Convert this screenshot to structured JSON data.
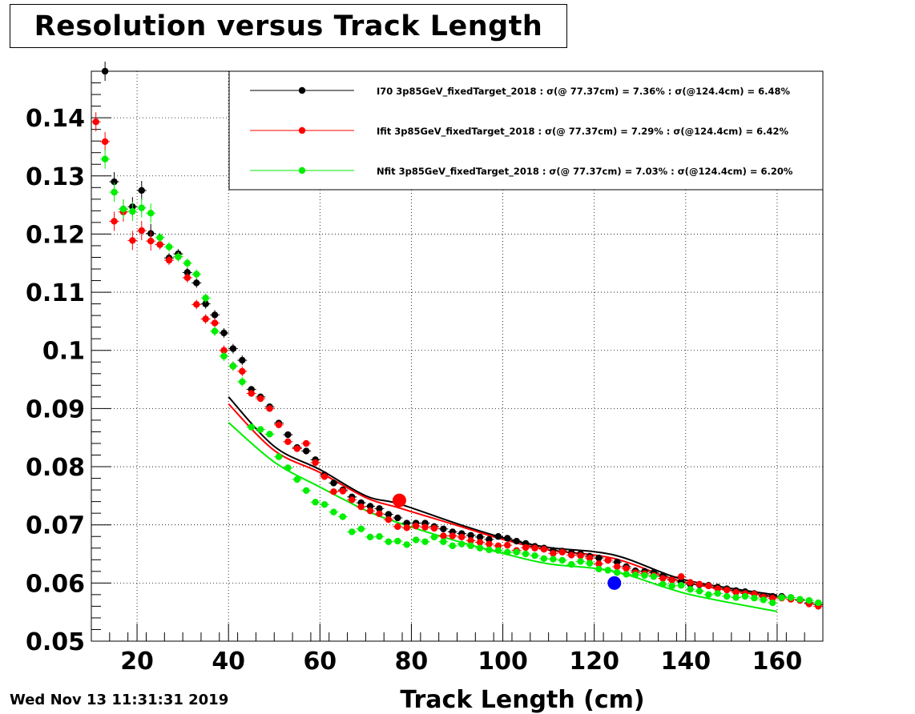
{
  "title": "Resolution versus Track Length",
  "datestamp": "Wed Nov 13 11:31:31 2019",
  "chart_data": {
    "type": "scatter",
    "title": "Resolution versus Track Length",
    "xlabel": "Track Length (cm)",
    "ylabel": "",
    "xlim": [
      10,
      170
    ],
    "ylim": [
      0.05,
      0.148
    ],
    "grid": true,
    "legend_position": "top-right",
    "x_ticks": [
      20,
      40,
      60,
      80,
      100,
      120,
      140,
      160
    ],
    "x_tick_labels": [
      "20",
      "40",
      "60",
      "80",
      "100",
      "120",
      "140",
      "160"
    ],
    "y_ticks": [
      0.05,
      0.06,
      0.07,
      0.08,
      0.09,
      0.1,
      0.11,
      0.12,
      0.13,
      0.14
    ],
    "y_tick_labels": [
      "0.05",
      "0.06",
      "0.07",
      "0.08",
      "0.09",
      "0.1",
      "0.11",
      "0.12",
      "0.13",
      "0.14"
    ],
    "series": [
      {
        "name": "I70  3p85GeV_fixedTarget_2018 : σ(@ 77.37cm) =  7.36% : σ(@124.4cm) =  6.48%",
        "color": "#000000",
        "x": [
          13,
          15,
          17,
          19,
          21,
          23,
          25,
          27,
          29,
          31,
          33,
          35,
          37,
          39,
          41,
          43,
          45,
          47,
          49,
          51,
          53,
          55,
          57,
          59,
          61,
          63,
          65,
          67,
          69,
          71,
          73,
          75,
          77,
          79,
          81,
          83,
          85,
          87,
          89,
          91,
          93,
          95,
          97,
          99,
          101,
          103,
          105,
          107,
          109,
          111,
          113,
          115,
          117,
          119,
          121,
          123,
          125,
          127,
          129,
          131,
          133,
          135,
          137,
          139,
          141,
          143,
          145,
          147,
          149,
          151,
          153,
          155,
          157,
          159,
          161,
          163,
          165,
          167,
          169
        ],
        "y": [
          0.148,
          0.129,
          0.1243,
          0.1247,
          0.1275,
          0.1201,
          0.1182,
          0.1159,
          0.1166,
          0.1134,
          0.1116,
          0.108,
          0.1061,
          0.103,
          0.1003,
          0.0983,
          0.0933,
          0.092,
          0.0903,
          0.0875,
          0.0855,
          0.0833,
          0.0827,
          0.0812,
          0.0786,
          0.0772,
          0.076,
          0.0748,
          0.0738,
          0.0732,
          0.0728,
          0.0718,
          0.0712,
          0.0703,
          0.0703,
          0.0703,
          0.0697,
          0.0693,
          0.0688,
          0.0685,
          0.0682,
          0.0679,
          0.0675,
          0.068,
          0.0677,
          0.0672,
          0.0668,
          0.0663,
          0.066,
          0.0656,
          0.0655,
          0.0652,
          0.065,
          0.0646,
          0.0643,
          0.0639,
          0.0636,
          0.0628,
          0.0621,
          0.062,
          0.0618,
          0.0612,
          0.0606,
          0.0602,
          0.0598,
          0.0597,
          0.0596,
          0.0593,
          0.059,
          0.0587,
          0.0585,
          0.0582,
          0.0578,
          0.0577,
          0.0577,
          0.0575,
          0.0571,
          0.0566,
          0.0563
        ]
      },
      {
        "name": "Ifit 3p85GeV_fixedTarget_2018 : σ(@ 77.37cm) =  7.29% : σ(@124.4cm) =  6.42%",
        "color": "#ff0000",
        "x": [
          11,
          13,
          15,
          17,
          19,
          21,
          23,
          25,
          27,
          29,
          31,
          33,
          35,
          37,
          39,
          41,
          43,
          45,
          47,
          49,
          51,
          53,
          55,
          57,
          59,
          61,
          63,
          65,
          67,
          69,
          71,
          73,
          75,
          77,
          79,
          81,
          83,
          85,
          87,
          89,
          91,
          93,
          95,
          97,
          99,
          101,
          103,
          105,
          107,
          109,
          111,
          113,
          115,
          117,
          119,
          121,
          123,
          125,
          127,
          129,
          131,
          133,
          135,
          137,
          139,
          141,
          143,
          145,
          147,
          149,
          151,
          153,
          155,
          157,
          159,
          161,
          163,
          165,
          167,
          169
        ],
        "y": [
          0.1393,
          0.1359,
          0.1222,
          0.1238,
          0.1189,
          0.1206,
          0.1188,
          0.1182,
          0.1155,
          0.1161,
          0.1125,
          0.1079,
          0.1054,
          0.1047,
          0.1,
          0.0973,
          0.0964,
          0.0926,
          0.0917,
          0.09,
          0.0872,
          0.0843,
          0.0831,
          0.084,
          0.0807,
          0.0783,
          0.0757,
          0.0758,
          0.0743,
          0.0731,
          0.0724,
          0.0719,
          0.0709,
          0.0697,
          0.0695,
          0.0698,
          0.0696,
          0.0694,
          0.0681,
          0.0681,
          0.0679,
          0.0673,
          0.067,
          0.0667,
          0.0664,
          0.0665,
          0.0656,
          0.0661,
          0.066,
          0.0658,
          0.0651,
          0.0653,
          0.0648,
          0.0647,
          0.0643,
          0.0633,
          0.0639,
          0.0628,
          0.0625,
          0.0618,
          0.0616,
          0.0613,
          0.0608,
          0.0605,
          0.0611,
          0.0601,
          0.0598,
          0.0595,
          0.059,
          0.0588,
          0.0584,
          0.0582,
          0.0581,
          0.0576,
          0.0574,
          0.0574,
          0.0572,
          0.057,
          0.0564,
          0.056
        ]
      },
      {
        "name": "Nfit 3p85GeV_fixedTarget_2018 : σ(@ 77.37cm) =  7.03% : σ(@124.4cm) =  6.20%",
        "color": "#00ee00",
        "x": [
          13,
          15,
          17,
          19,
          21,
          23,
          25,
          27,
          29,
          31,
          33,
          35,
          37,
          39,
          41,
          43,
          45,
          47,
          49,
          51,
          53,
          55,
          57,
          59,
          61,
          63,
          65,
          67,
          69,
          71,
          73,
          75,
          77,
          79,
          81,
          83,
          85,
          87,
          89,
          91,
          93,
          95,
          97,
          99,
          101,
          103,
          105,
          107,
          109,
          111,
          113,
          115,
          117,
          119,
          121,
          123,
          125,
          127,
          129,
          131,
          133,
          135,
          137,
          139,
          141,
          143,
          145,
          147,
          149,
          151,
          153,
          155,
          157,
          159,
          161,
          163,
          165,
          167,
          169
        ],
        "y": [
          0.1329,
          0.1272,
          0.1243,
          0.1239,
          0.1245,
          0.1236,
          0.1194,
          0.1178,
          0.1161,
          0.115,
          0.1131,
          0.109,
          0.1033,
          0.099,
          0.0973,
          0.0946,
          0.0868,
          0.0864,
          0.0856,
          0.0817,
          0.0798,
          0.0778,
          0.0759,
          0.0739,
          0.0735,
          0.0722,
          0.0714,
          0.0688,
          0.0693,
          0.0679,
          0.068,
          0.0671,
          0.0672,
          0.0666,
          0.0674,
          0.0671,
          0.0679,
          0.0671,
          0.0664,
          0.0667,
          0.0664,
          0.066,
          0.0657,
          0.0656,
          0.0653,
          0.0653,
          0.065,
          0.0647,
          0.0642,
          0.0641,
          0.0639,
          0.0632,
          0.0637,
          0.0634,
          0.0624,
          0.0622,
          0.0618,
          0.0615,
          0.0614,
          0.0613,
          0.0611,
          0.0598,
          0.0595,
          0.0596,
          0.0589,
          0.0586,
          0.058,
          0.0582,
          0.0577,
          0.0575,
          0.0577,
          0.0574,
          0.0571,
          0.0566,
          0.0575,
          0.0575,
          0.0572,
          0.057,
          0.0566
        ]
      }
    ],
    "fits": [
      {
        "color": "#000000",
        "x": [
          40,
          50,
          60,
          70,
          77.37,
          90,
          100,
          110,
          124.4,
          140,
          160
        ],
        "y": [
          0.092,
          0.0835,
          0.0795,
          0.075,
          0.0736,
          0.0702,
          0.0678,
          0.0661,
          0.0648,
          0.0605,
          0.0579
        ]
      },
      {
        "color": "#ff0000",
        "x": [
          40,
          50,
          60,
          70,
          77.37,
          90,
          100,
          110,
          124.4,
          140,
          160
        ],
        "y": [
          0.0908,
          0.0828,
          0.079,
          0.0747,
          0.0729,
          0.0699,
          0.0675,
          0.0657,
          0.0642,
          0.0601,
          0.0576
        ]
      },
      {
        "color": "#00ee00",
        "x": [
          40,
          50,
          60,
          70,
          77.37,
          90,
          100,
          110,
          124.4,
          140,
          160
        ],
        "y": [
          0.0876,
          0.0808,
          0.0765,
          0.0725,
          0.0703,
          0.0672,
          0.0651,
          0.0633,
          0.062,
          0.0582,
          0.0551
        ]
      }
    ],
    "markers": [
      {
        "color": "#ff0000",
        "x": 77.37,
        "y": 0.0742
      },
      {
        "color": "#0000ff",
        "x": 124.4,
        "y": 0.06
      }
    ]
  }
}
